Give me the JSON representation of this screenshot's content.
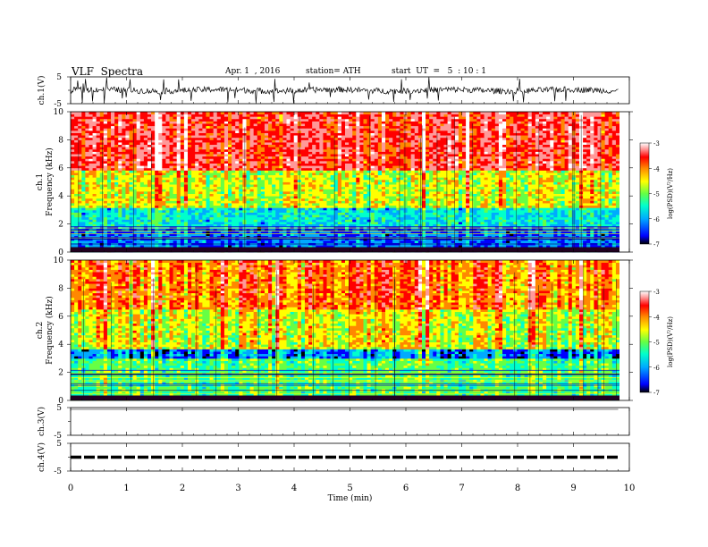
{
  "header": {
    "title": "VLF  Spectra",
    "date": "Apr. 1  , 2016",
    "station": "station= ATH",
    "start": "start  UT  =   5  : 10 : 1"
  },
  "colors": {
    "colormap": [
      "#000000",
      "#0000ff",
      "#00aaff",
      "#00ffcc",
      "#66ff44",
      "#ffff00",
      "#ff8800",
      "#ff0000",
      "#ff9999",
      "#ffffff"
    ],
    "trace": "#000000"
  },
  "chart_data": [
    {
      "type": "line",
      "id": "ch1",
      "ylabel": "ch.1(V)",
      "ylim": [
        -5,
        5
      ],
      "yticks": [
        "5",
        "-5"
      ],
      "xlim": [
        0,
        10
      ],
      "description_series": "noisy waveform centred near 0 V with amplitude about ±1 V and occasional spikes"
    },
    {
      "type": "heatmap",
      "id": "ch1-spectrogram",
      "ylabel": "ch.1\nFrequency  (kHz)",
      "ylim": [
        0,
        10
      ],
      "yticks": [
        "0",
        "2",
        "4",
        "6",
        "8",
        "10"
      ],
      "xlim": [
        0,
        9.8
      ],
      "colorbar": {
        "label": "log(PSD)(V²/Hz)",
        "range": [
          -7,
          -3
        ],
        "ticks": [
          "-3",
          "-4",
          "-5",
          "-6",
          "-7"
        ]
      },
      "bands": [
        {
          "fmin": 0,
          "fmax": 1.8,
          "level": -6.3
        },
        {
          "fmin": 1.8,
          "fmax": 3.2,
          "level": -5.8
        },
        {
          "fmin": 3.2,
          "fmax": 5.8,
          "level": -4.9
        },
        {
          "fmin": 5.8,
          "fmax": 10,
          "level": -3.8
        }
      ]
    },
    {
      "type": "heatmap",
      "id": "ch2-spectrogram",
      "ylabel": "ch.2\nFrequency  (kHz)",
      "ylim": [
        0,
        10
      ],
      "yticks": [
        "0",
        "2",
        "4",
        "6",
        "8",
        "10"
      ],
      "xlim": [
        0,
        9.8
      ],
      "colorbar": {
        "label": "log(PSD)(V²/Hz)",
        "range": [
          -7,
          -3
        ],
        "ticks": [
          "-3",
          "-4",
          "-5",
          "-6",
          "-7"
        ]
      },
      "bands": [
        {
          "fmin": 0,
          "fmax": 3.0,
          "level": -5.4
        },
        {
          "fmin": 3.0,
          "fmax": 3.6,
          "level": -6.3
        },
        {
          "fmin": 3.6,
          "fmax": 6.5,
          "level": -4.9
        },
        {
          "fmin": 6.5,
          "fmax": 10,
          "level": -4.3
        }
      ]
    },
    {
      "type": "line",
      "id": "ch3",
      "ylabel": "ch.3(V)",
      "ylim": [
        -5,
        5
      ],
      "yticks": [
        "5",
        "-5"
      ],
      "xlim": [
        0,
        10
      ],
      "values_level": 5
    },
    {
      "type": "line",
      "id": "ch4",
      "ylabel": "ch.4(V)",
      "ylim": [
        -5,
        5
      ],
      "yticks": [
        "5",
        "-5"
      ],
      "xlim": [
        0,
        10
      ],
      "values_level": 0
    }
  ],
  "xaxis": {
    "label": "Time  (min)",
    "ticks": [
      "0",
      "1",
      "2",
      "3",
      "4",
      "5",
      "6",
      "7",
      "8",
      "9",
      "10"
    ]
  }
}
